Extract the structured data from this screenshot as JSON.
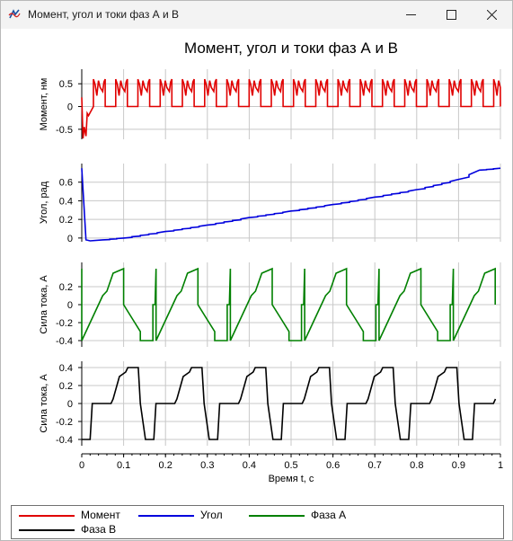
{
  "window": {
    "title": "Момент, угол и токи фаз А и В",
    "icon": "app-logo-icon"
  },
  "controls": {
    "minimize": "minimize-icon",
    "maximize": "maximize-icon",
    "close": "close-icon"
  },
  "colors": {
    "moment": "#e00000",
    "angle": "#0000dd",
    "phaseA": "#008000",
    "phaseB": "#000000",
    "grid": "#c8c8c8"
  },
  "legend": [
    {
      "label": "Момент",
      "color": "#e00000"
    },
    {
      "label": "Угол",
      "color": "#0000dd"
    },
    {
      "label": "Фаза А",
      "color": "#008000"
    },
    {
      "label": "Фаза В",
      "color": "#000000"
    }
  ],
  "chart_data": {
    "type": "line",
    "title": "Момент, угол и токи фаз А и В",
    "xlabel": "Время t, с",
    "xlim": [
      0,
      1
    ],
    "xticks": [
      "0",
      "0.1",
      "0.2",
      "0.3",
      "0.4",
      "0.5",
      "0.6",
      "0.7",
      "0.8",
      "0.9",
      "1"
    ],
    "grid": true,
    "legend_position": "bottom",
    "panels": [
      {
        "ylabel": "Момент, нм",
        "yticks": [
          "0.5",
          "0",
          "-0.5"
        ],
        "ylim": [
          -0.72,
          0.82
        ],
        "series": [
          {
            "name": "Момент",
            "color": "#e00000",
            "pulse_period": 0.0531,
            "pulse_high": 0.6,
            "pulse_low": 0.0,
            "x": [
              0,
              0.003,
              0.006,
              0.01,
              0.013,
              0.016
            ],
            "y": [
              0.2,
              -0.7,
              -0.45,
              -0.65,
              -0.15,
              -0.2
            ]
          }
        ]
      },
      {
        "ylabel": "Угол, рад",
        "yticks": [
          "0.6",
          "0.4",
          "0.2",
          "0"
        ],
        "ylim": [
          -0.04,
          0.8
        ],
        "series": [
          {
            "name": "Угол",
            "color": "#0000dd",
            "x": [
              0,
              0.01,
              0.02,
              0.05,
              0.1,
              0.2,
              0.3,
              0.4,
              0.5,
              0.6,
              0.7,
              0.8,
              0.9,
              0.95,
              1
            ],
            "y": [
              0.75,
              -0.02,
              -0.03,
              -0.02,
              0.0,
              0.07,
              0.14,
              0.22,
              0.29,
              0.36,
              0.44,
              0.52,
              0.63,
              0.73,
              0.75
            ]
          }
        ]
      },
      {
        "ylabel": "Сила тока, А",
        "yticks": [
          "0.2",
          "0",
          "-0.2",
          "-0.4"
        ],
        "ylim": [
          -0.47,
          0.47
        ],
        "series": [
          {
            "name": "Фаза А",
            "color": "#008000",
            "period": 0.1775,
            "amplitude": 0.4,
            "x": [
              0.0,
              0.0,
              0.05,
              0.06,
              0.075,
              0.1,
              0.1,
              0.12,
              0.14,
              0.14,
              0.16,
              0.17,
              0.17,
              0.175
            ],
            "y": [
              0.4,
              -0.4,
              0.1,
              0.15,
              0.35,
              0.4,
              0.0,
              -0.15,
              -0.3,
              -0.4,
              -0.4,
              -0.4,
              0.0,
              0.0
            ]
          }
        ]
      },
      {
        "ylabel": "Сила тока, А",
        "yticks": [
          "0.4",
          "0.2",
          "0",
          "-0.2",
          "-0.4"
        ],
        "ylim": [
          -0.47,
          0.47
        ],
        "series": [
          {
            "name": "Фаза В",
            "color": "#000000",
            "period": 0.1522,
            "amplitude": 0.4,
            "x": [
              0.0,
              0.02,
              0.025,
              0.07,
              0.075,
              0.09,
              0.105,
              0.11,
              0.135,
              0.14
            ],
            "y": [
              -0.4,
              -0.4,
              0.0,
              0.0,
              0.05,
              0.3,
              0.35,
              0.4,
              0.4,
              0.0
            ]
          }
        ]
      }
    ]
  }
}
